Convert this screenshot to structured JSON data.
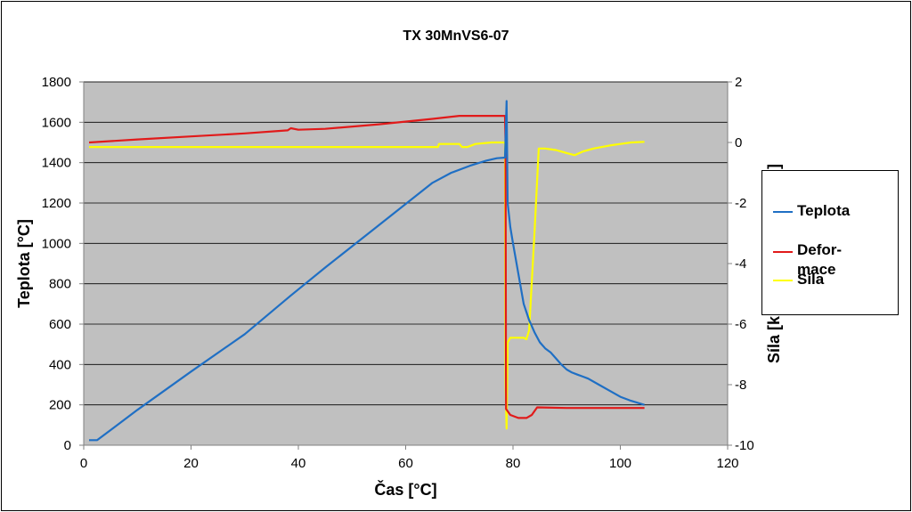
{
  "chart_data": {
    "type": "line",
    "title": "TX 30MnVS6-07",
    "xlabel": "Čas [°C]",
    "ylabel_left": "Teplota [°C]",
    "ylabel_right": "Síla [kN], Deformace [mm]",
    "xlim": [
      0,
      120
    ],
    "ylim_left": [
      0,
      1800
    ],
    "ylim_right": [
      -10,
      2
    ],
    "x_ticks": [
      "0",
      "20",
      "40",
      "60",
      "80",
      "100",
      "120"
    ],
    "y_left_ticks": [
      "0",
      "200",
      "400",
      "600",
      "800",
      "1000",
      "1200",
      "1400",
      "1600",
      "1800"
    ],
    "y_right_ticks": [
      "-10",
      "-8",
      "-6",
      "-4",
      "-2",
      "0",
      "2"
    ],
    "grid": true,
    "plot_background": "#c0c0c0",
    "legend_position": "right",
    "series": [
      {
        "name": "Teplota",
        "axis": "left",
        "color": "#1f6fc4",
        "points": [
          [
            1,
            25
          ],
          [
            2.5,
            25
          ],
          [
            10,
            175
          ],
          [
            20,
            365
          ],
          [
            30,
            550
          ],
          [
            38.5,
            740
          ],
          [
            45,
            880
          ],
          [
            55,
            1090
          ],
          [
            65,
            1300
          ],
          [
            68.5,
            1350
          ],
          [
            72,
            1385
          ],
          [
            75,
            1410
          ],
          [
            77,
            1422
          ],
          [
            78.5,
            1425
          ],
          [
            78.8,
            1705
          ],
          [
            79,
            1200
          ],
          [
            79.5,
            1080
          ],
          [
            80,
            1000
          ],
          [
            81,
            850
          ],
          [
            82,
            700
          ],
          [
            83,
            620
          ],
          [
            84,
            560
          ],
          [
            85,
            510
          ],
          [
            86,
            480
          ],
          [
            87,
            460
          ],
          [
            88,
            430
          ],
          [
            89,
            400
          ],
          [
            90,
            375
          ],
          [
            91,
            360
          ],
          [
            92,
            350
          ],
          [
            93,
            340
          ],
          [
            94,
            330
          ],
          [
            96,
            300
          ],
          [
            98,
            270
          ],
          [
            100,
            240
          ],
          [
            102,
            220
          ],
          [
            104.5,
            200
          ]
        ]
      },
      {
        "name": "Defor-mace",
        "axis": "right",
        "color": "#e11a1a",
        "points": [
          [
            1,
            0
          ],
          [
            10,
            0.1
          ],
          [
            20,
            0.2
          ],
          [
            30,
            0.3
          ],
          [
            38,
            0.4
          ],
          [
            38.6,
            0.47
          ],
          [
            40,
            0.42
          ],
          [
            45,
            0.45
          ],
          [
            55,
            0.6
          ],
          [
            65,
            0.78
          ],
          [
            70,
            0.88
          ],
          [
            78.5,
            0.88
          ],
          [
            78.6,
            0
          ],
          [
            78.7,
            -8.8
          ],
          [
            79.5,
            -9
          ],
          [
            81,
            -9.1
          ],
          [
            82.5,
            -9.1
          ],
          [
            83.5,
            -9
          ],
          [
            84.5,
            -8.75
          ],
          [
            90,
            -8.77
          ],
          [
            95,
            -8.77
          ],
          [
            100,
            -8.77
          ],
          [
            104.5,
            -8.77
          ]
        ]
      },
      {
        "name": "Síla",
        "axis": "right",
        "color": "#ffff00",
        "points": [
          [
            1,
            -0.15
          ],
          [
            10,
            -0.15
          ],
          [
            20,
            -0.15
          ],
          [
            30,
            -0.15
          ],
          [
            40,
            -0.15
          ],
          [
            50,
            -0.15
          ],
          [
            60,
            -0.15
          ],
          [
            66,
            -0.15
          ],
          [
            66.2,
            -0.05
          ],
          [
            70,
            -0.05
          ],
          [
            70.5,
            -0.15
          ],
          [
            71.5,
            -0.15
          ],
          [
            73,
            -0.05
          ],
          [
            76,
            0
          ],
          [
            78.5,
            0
          ],
          [
            78.6,
            -8
          ],
          [
            78.8,
            -9.45
          ],
          [
            79,
            -6.6
          ],
          [
            79.5,
            -6.45
          ],
          [
            82,
            -6.45
          ],
          [
            82.5,
            -6.5
          ],
          [
            83,
            -6.2
          ],
          [
            84,
            -3
          ],
          [
            84.8,
            -0.2
          ],
          [
            86,
            -0.2
          ],
          [
            88,
            -0.25
          ],
          [
            90,
            -0.35
          ],
          [
            91.5,
            -0.42
          ],
          [
            93,
            -0.3
          ],
          [
            95,
            -0.2
          ],
          [
            98,
            -0.1
          ],
          [
            100,
            -0.05
          ],
          [
            102,
            0
          ],
          [
            104.5,
            0.02
          ]
        ]
      }
    ]
  },
  "legend": {
    "items": [
      {
        "line1": "Teplota",
        "line2": ""
      },
      {
        "line1": "Defor-",
        "line2": "mace"
      },
      {
        "line1": "Síla",
        "line2": ""
      }
    ]
  }
}
